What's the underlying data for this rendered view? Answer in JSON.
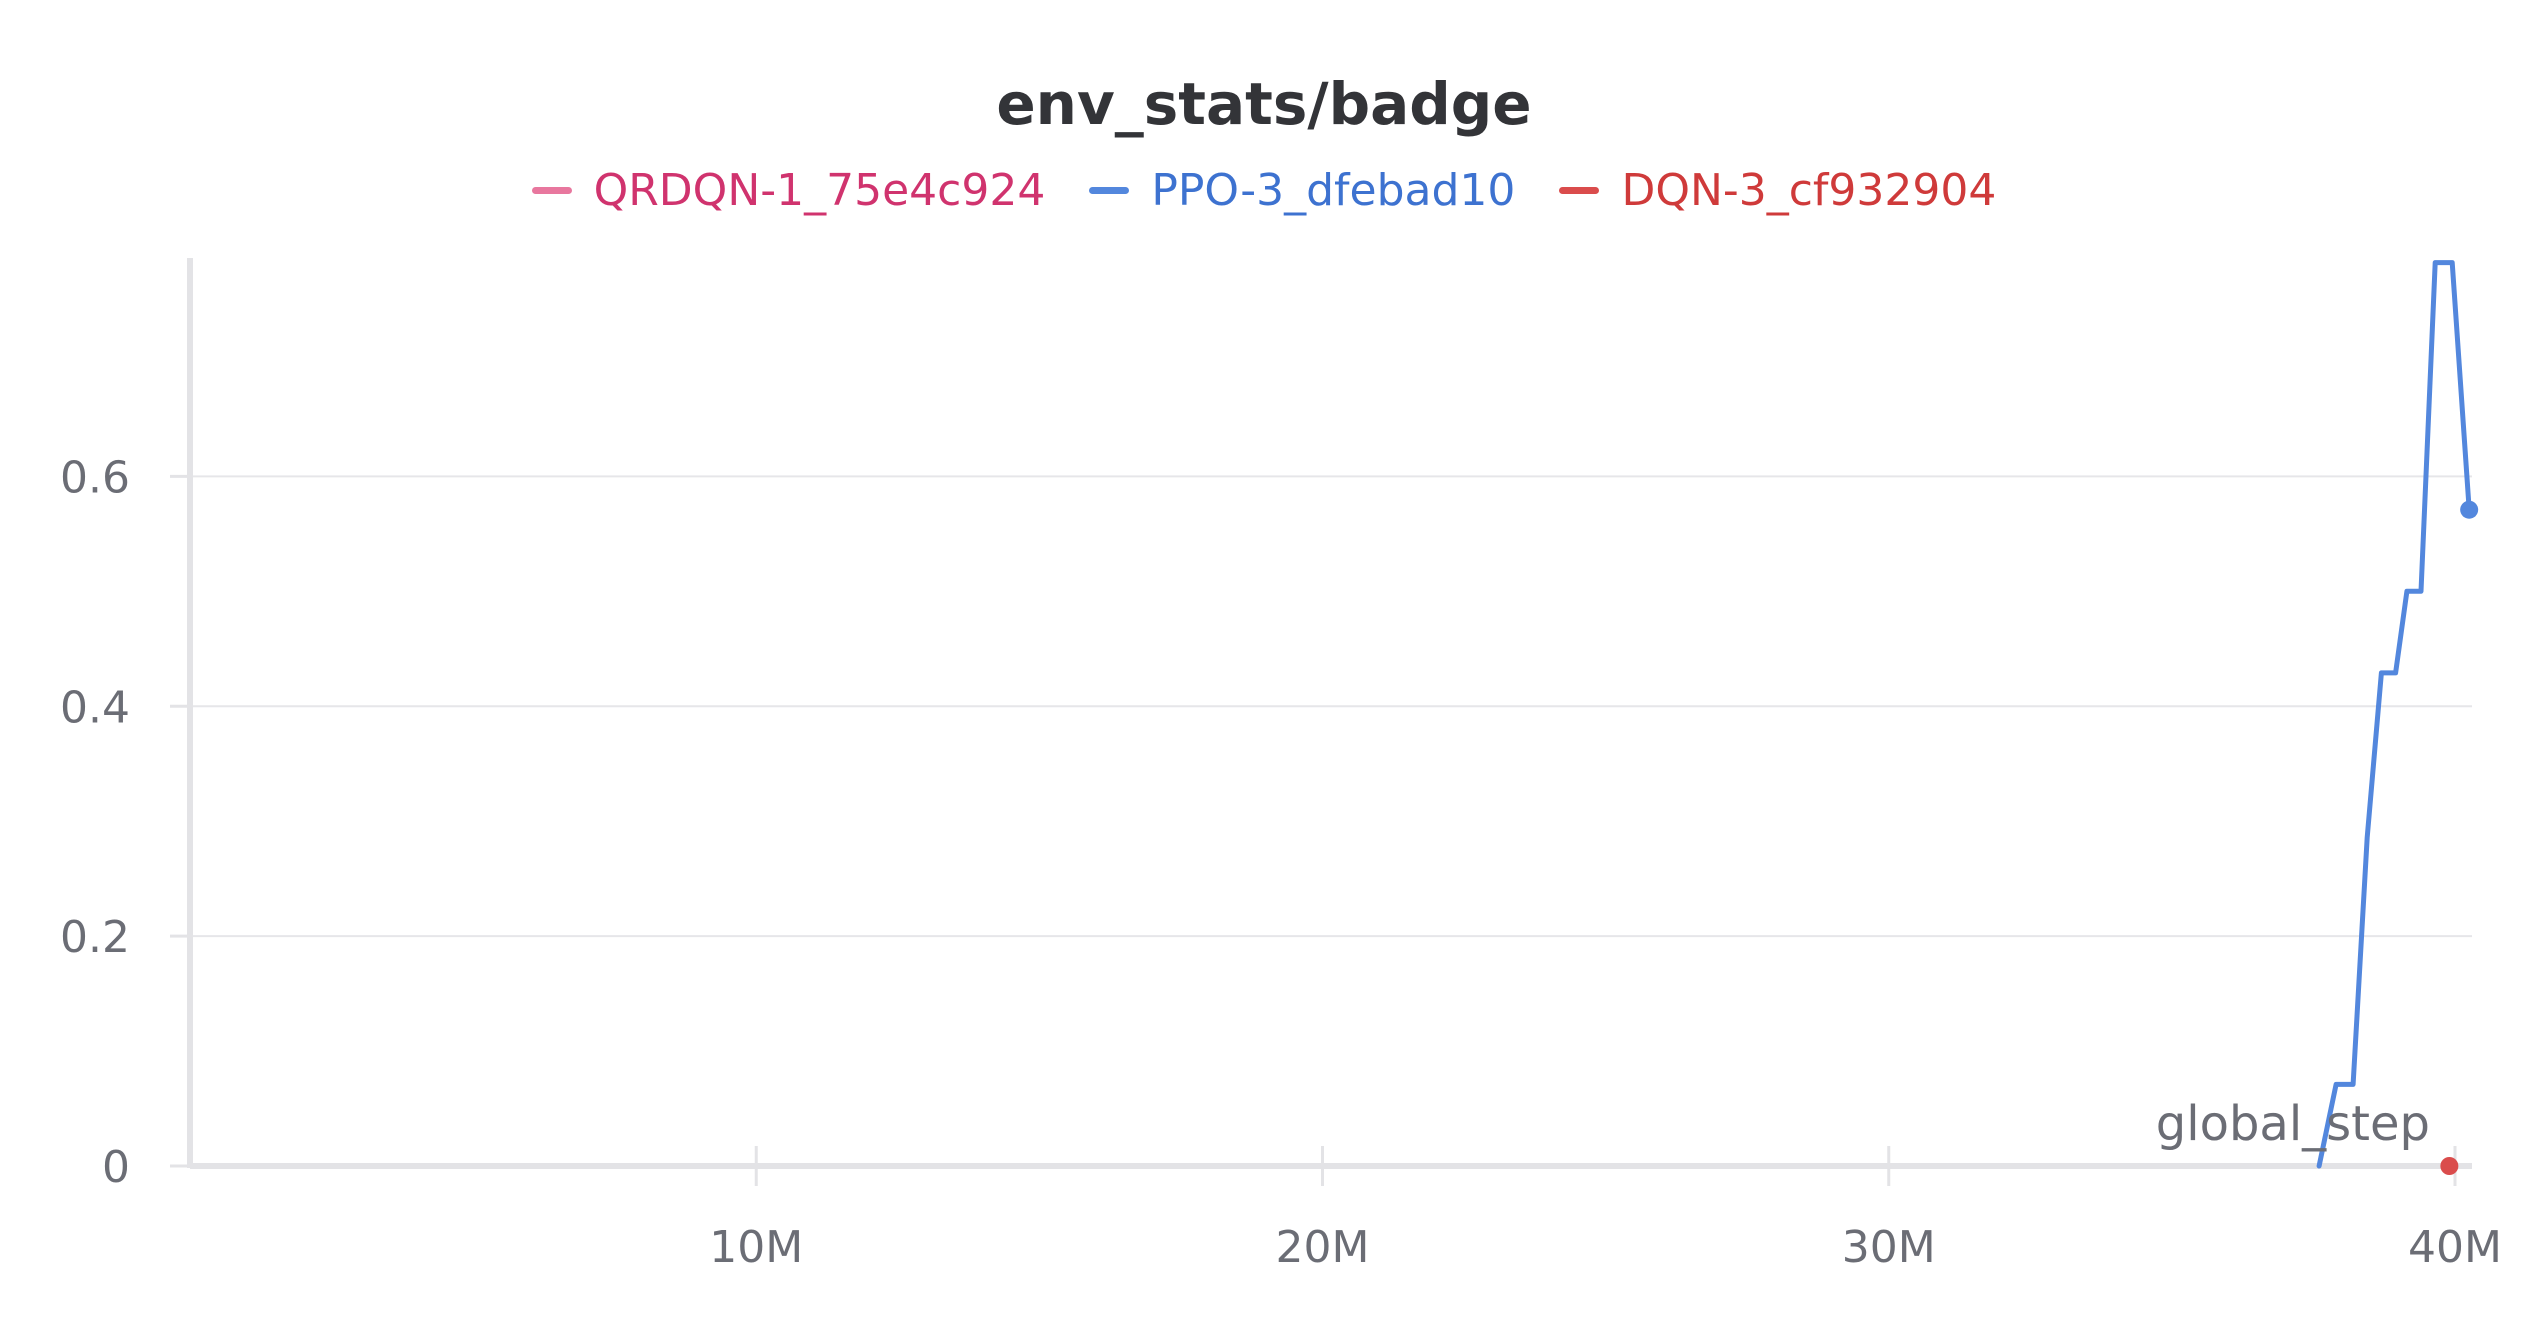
{
  "chart_data": {
    "type": "line",
    "title": "env_stats/badge",
    "xlabel": "global_step",
    "ylabel": "",
    "xlim": [
      0,
      40300000
    ],
    "ylim": [
      0,
      0.79
    ],
    "x_ticks": [
      10000000,
      20000000,
      30000000,
      40000000
    ],
    "x_tick_labels": [
      "10M",
      "20M",
      "30M",
      "40M"
    ],
    "y_ticks": [
      0,
      0.2,
      0.4,
      0.6
    ],
    "y_tick_labels": [
      "0",
      "0.2",
      "0.4",
      "0.6"
    ],
    "grid": true,
    "legend_position": "top-center",
    "series": [
      {
        "name": "QRDQN-1_75e4c924",
        "color": "#e8779e",
        "text_color": "#d0336e",
        "x": [],
        "y": []
      },
      {
        "name": "PPO-3_dfebad10",
        "color": "#5387dd",
        "text_color": "#3d72d0",
        "x": [
          37600000,
          37900000,
          38200000,
          38450000,
          38700000,
          38950000,
          39150000,
          39400000,
          39650000,
          39950000,
          40250000
        ],
        "y": [
          0,
          0.071,
          0.071,
          0.286,
          0.429,
          0.429,
          0.5,
          0.5,
          0.786,
          0.786,
          0.571
        ],
        "end_marker": true
      },
      {
        "name": "DQN-3_cf932904",
        "color": "#da4c4c",
        "text_color": "#cf3a3a",
        "x": [
          39900000
        ],
        "y": [
          0
        ],
        "end_marker": true
      }
    ]
  }
}
